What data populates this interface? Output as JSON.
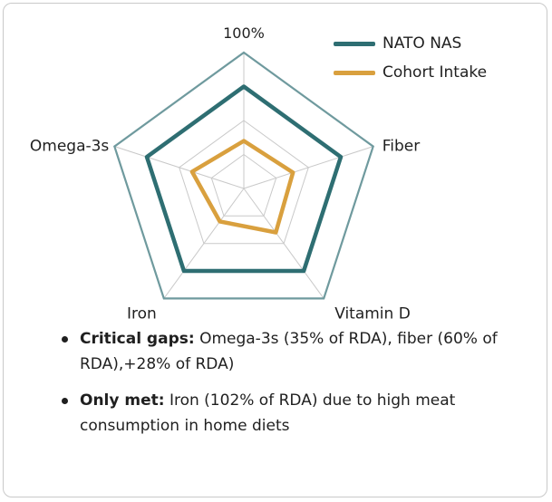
{
  "chart_data": {
    "type": "radar",
    "axes": [
      "100%",
      "Fiber",
      "Vitamin D",
      "Iron",
      "Omega-3s"
    ],
    "grid_levels": 4,
    "max": 100,
    "series": [
      {
        "name": "NATO NAS",
        "color": "#2e6e72",
        "values": [
          75,
          75,
          75,
          75,
          75
        ]
      },
      {
        "name": "Cohort Intake",
        "color": "#d9a03e",
        "values": [
          35,
          38,
          40,
          30,
          40
        ]
      }
    ],
    "legend_position": "top-right",
    "grid_color": "#c9c9c9",
    "outline_color": "#6f9a9e"
  },
  "bullets": [
    {
      "lead": "Critical gaps:",
      "text": " Omega-3s (35% of RDA), fiber (60% of RDA),+28% of RDA)"
    },
    {
      "lead": "Only met:",
      "text": " Iron (102% of RDA) due to high meat consumption in home diets"
    }
  ]
}
